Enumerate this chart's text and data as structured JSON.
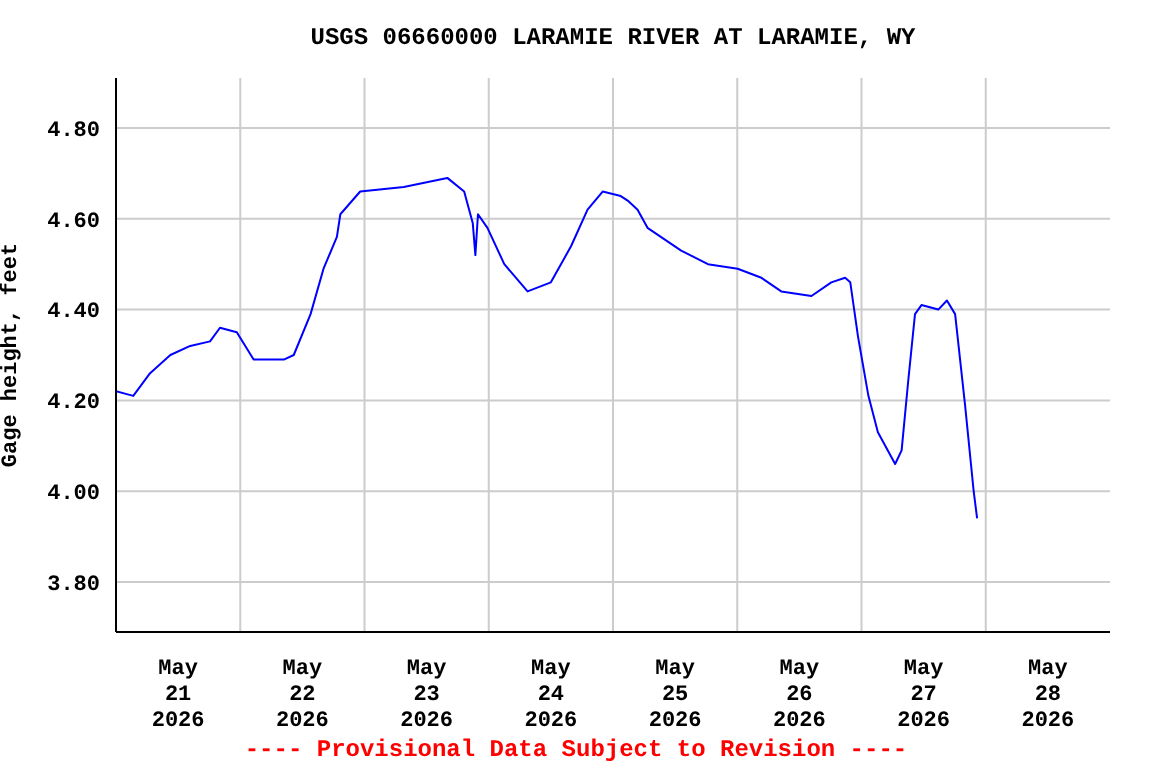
{
  "chart_data": {
    "type": "line",
    "title": "USGS 06660000 LARAMIE RIVER AT LARAMIE, WY",
    "ylabel": "Gage height, feet",
    "annotations": [
      "---- Provisional Data Subject to Revision ----"
    ],
    "x": [
      "2026-05-21T00:00",
      "2026-05-21T03:20",
      "2026-05-21T06:35",
      "2026-05-21T10:30",
      "2026-05-21T14:20",
      "2026-05-21T18:10",
      "2026-05-21T20:05",
      "2026-05-21T23:20",
      "2026-05-22T02:35",
      "2026-05-22T08:25",
      "2026-05-22T10:20",
      "2026-05-22T13:35",
      "2026-05-22T16:05",
      "2026-05-22T18:40",
      "2026-05-22T19:20",
      "2026-05-22T23:10",
      "2026-05-23T07:35",
      "2026-05-23T16:00",
      "2026-05-23T19:15",
      "2026-05-23T20:55",
      "2026-05-23T21:25",
      "2026-05-23T21:55",
      "2026-05-23T23:45",
      "2026-05-24T03:00",
      "2026-05-24T07:30",
      "2026-05-24T12:00",
      "2026-05-24T15:55",
      "2026-05-24T19:05",
      "2026-05-24T22:00",
      "2026-05-25T01:30",
      "2026-05-25T02:50",
      "2026-05-25T04:45",
      "2026-05-25T06:40",
      "2026-05-25T13:10",
      "2026-05-25T18:20",
      "2026-05-26T00:05",
      "2026-05-26T04:40",
      "2026-05-26T08:30",
      "2026-05-26T14:20",
      "2026-05-26T18:10",
      "2026-05-26T20:50",
      "2026-05-26T21:50",
      "2026-05-26T23:20",
      "2026-05-27T01:20",
      "2026-05-27T03:10",
      "2026-05-27T06:30",
      "2026-05-27T07:45",
      "2026-05-27T09:00",
      "2026-05-27T10:20",
      "2026-05-27T11:35",
      "2026-05-27T14:50",
      "2026-05-27T16:30",
      "2026-05-27T18:05",
      "2026-05-27T20:00",
      "2026-05-27T21:40",
      "2026-05-27T22:20"
    ],
    "series": [
      {
        "color": "#0000ff",
        "values": [
          4.22,
          4.21,
          4.26,
          4.3,
          4.32,
          4.33,
          4.36,
          4.35,
          4.29,
          4.29,
          4.3,
          4.39,
          4.49,
          4.56,
          4.61,
          4.66,
          4.67,
          4.69,
          4.66,
          4.59,
          4.52,
          4.61,
          4.58,
          4.5,
          4.44,
          4.46,
          4.54,
          4.62,
          4.66,
          4.65,
          4.64,
          4.62,
          4.58,
          4.53,
          4.5,
          4.49,
          4.47,
          4.44,
          4.43,
          4.46,
          4.47,
          4.46,
          4.34,
          4.21,
          4.13,
          4.06,
          4.09,
          4.24,
          4.39,
          4.41,
          4.4,
          4.42,
          4.39,
          4.19,
          4.0,
          3.94
        ]
      }
    ],
    "xlim": [
      "2026-05-21T00:00",
      "2026-05-29T00:00"
    ],
    "xticks": [
      {
        "value": "2026-05-21T12:00",
        "label": "May\n21\n2026"
      },
      {
        "value": "2026-05-22T00:00",
        "label": null
      },
      {
        "value": "2026-05-22T12:00",
        "label": "May\n22\n2026"
      },
      {
        "value": "2026-05-23T00:00",
        "label": null
      },
      {
        "value": "2026-05-23T12:00",
        "label": "May\n23\n2026"
      },
      {
        "value": "2026-05-24T00:00",
        "label": null
      },
      {
        "value": "2026-05-24T12:00",
        "label": "May\n24\n2026"
      },
      {
        "value": "2026-05-25T00:00",
        "label": null
      },
      {
        "value": "2026-05-25T12:00",
        "label": "May\n25\n2026"
      },
      {
        "value": "2026-05-26T00:00",
        "label": null
      },
      {
        "value": "2026-05-26T12:00",
        "label": "May\n26\n2026"
      },
      {
        "value": "2026-05-27T00:00",
        "label": null
      },
      {
        "value": "2026-05-27T12:00",
        "label": "May\n27\n2026"
      },
      {
        "value": "2026-05-28T00:00",
        "label": null
      },
      {
        "value": "2026-05-28T12:00",
        "label": "May\n28\n2026"
      }
    ],
    "ylim": [
      3.69,
      4.91
    ],
    "yticks": [
      {
        "value": 3.8,
        "label": "3.80"
      },
      {
        "value": 4.0,
        "label": "4.00"
      },
      {
        "value": 4.2,
        "label": "4.20"
      },
      {
        "value": 4.4,
        "label": "4.40"
      },
      {
        "value": 4.6,
        "label": "4.60"
      },
      {
        "value": 4.8,
        "label": "4.80"
      }
    ],
    "grid": true,
    "legend": false,
    "marker": "none",
    "line_style": "solid"
  }
}
